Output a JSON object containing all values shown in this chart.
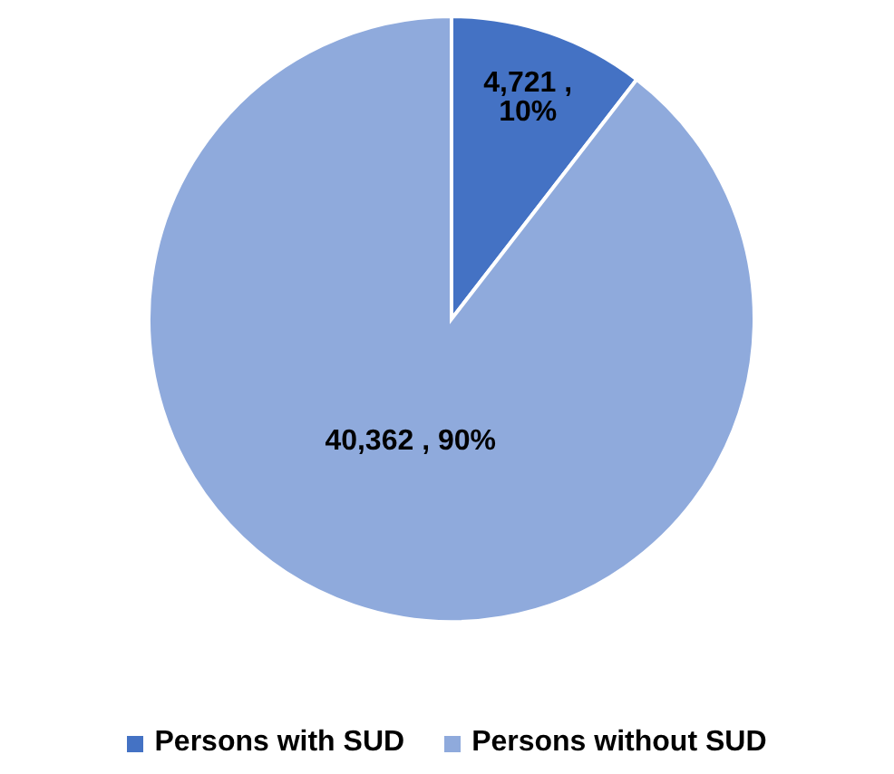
{
  "chart_data": {
    "type": "pie",
    "categories": [
      "Persons with SUD",
      "Persons without SUD"
    ],
    "values": [
      4721,
      40362
    ],
    "colors": [
      "#4472c4",
      "#8faadc"
    ],
    "value_labels": [
      "4,721 , 10%",
      "40,362 , 90%"
    ],
    "legend": "bottom"
  }
}
